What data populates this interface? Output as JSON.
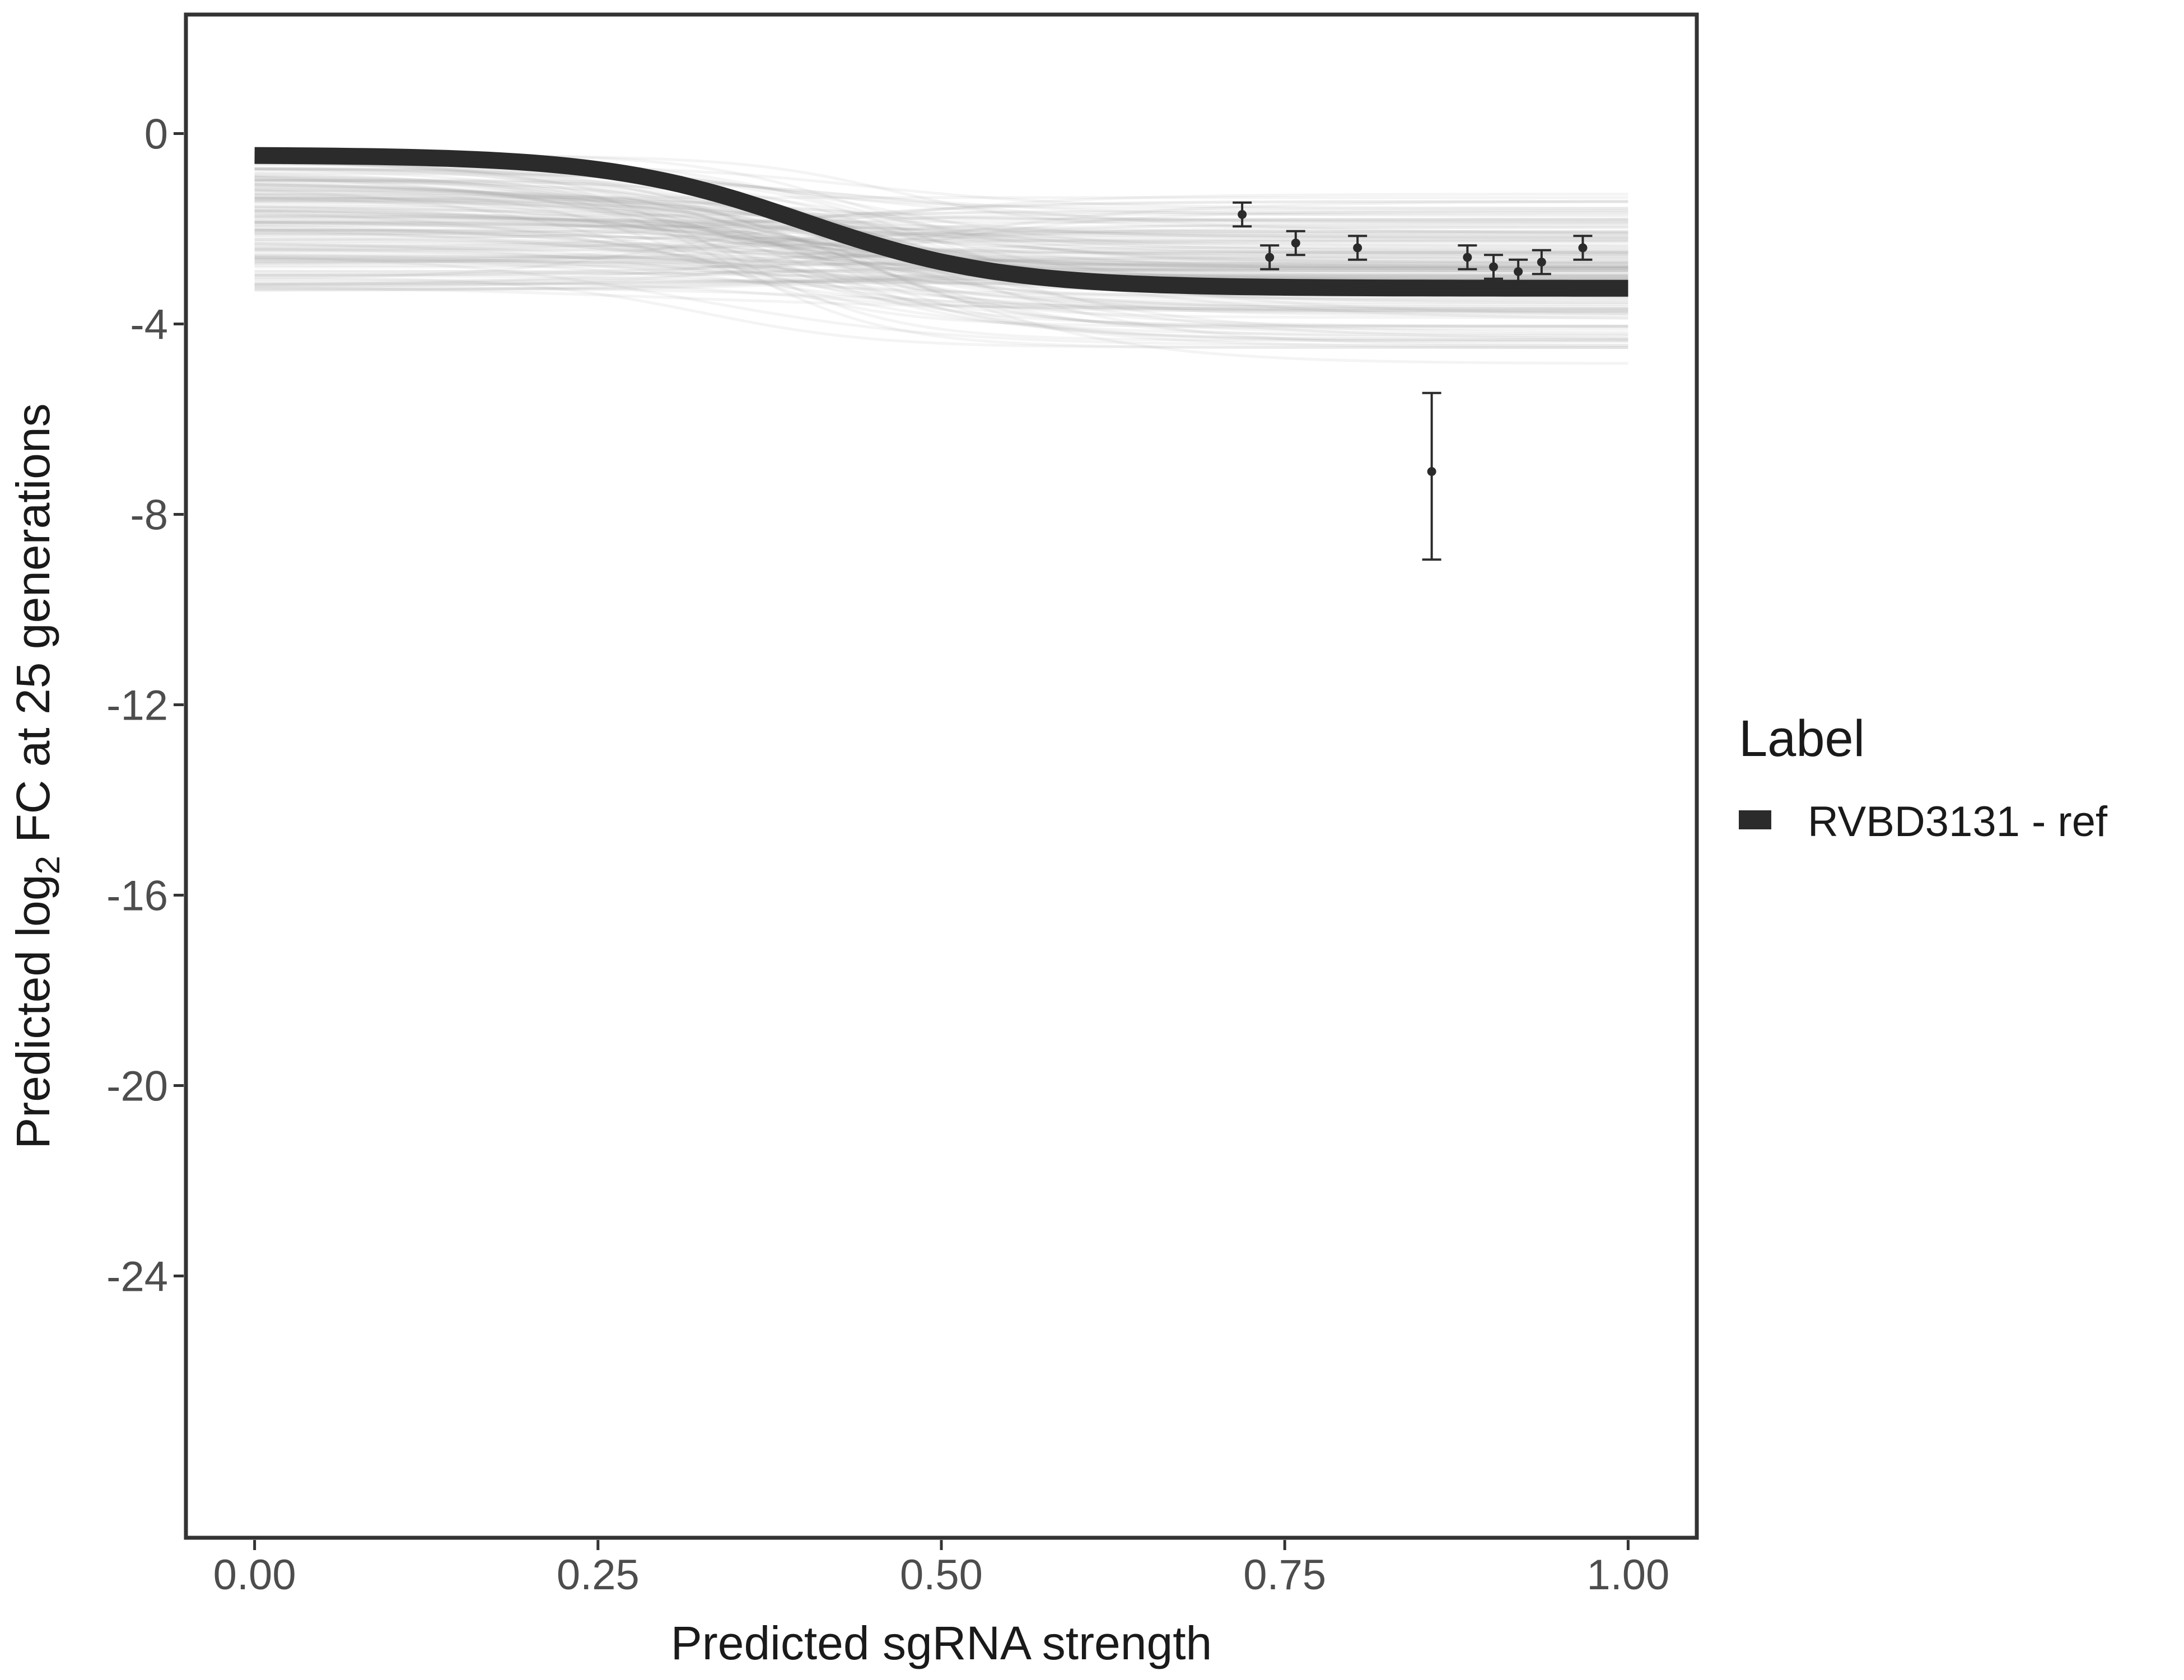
{
  "chart_data": {
    "type": "line",
    "title": "",
    "xlabel": "Predicted sgRNA strength",
    "ylabel": {
      "prefix": "Predicted  log",
      "subscript": "2",
      "suffix": " FC at 25 generations"
    },
    "xlim": [
      -0.05,
      1.05
    ],
    "ylim": [
      -29.5,
      2.5
    ],
    "x_ticks": [
      0.0,
      0.25,
      0.5,
      0.75,
      1.0
    ],
    "x_tick_labels": [
      "0.00",
      "0.25",
      "0.50",
      "0.75",
      "1.00"
    ],
    "y_ticks": [
      0,
      -4,
      -8,
      -12,
      -16,
      -20,
      -24
    ],
    "y_tick_labels": [
      "0",
      "-4",
      "-8",
      "-12",
      "-16",
      "-20",
      "-24"
    ],
    "grid": false,
    "legend": {
      "title": "Label",
      "position": "right",
      "entries": [
        {
          "label": "RVBD3131 - ref",
          "color": "#2b2b2b"
        }
      ]
    },
    "colors": {
      "main_line": "#2b2b2b",
      "posterior_lines": "#a6a6a6",
      "points": "#2b2b2b",
      "frame": "#333333"
    },
    "main_curve": {
      "name": "RVBD3131 - ref",
      "model": "logistic",
      "upper": -0.45,
      "lower": -3.25,
      "midpoint": 0.4,
      "slope": 14
    },
    "posterior_curves": {
      "count": 160,
      "upper_range": [
        -3.3,
        -0.4
      ],
      "lower_range": [
        -5.0,
        -1.0
      ],
      "midpoint_range": [
        0.3,
        0.5
      ],
      "slope_range": [
        8,
        18
      ]
    },
    "points": [
      {
        "x": 0.719,
        "y": -1.7,
        "ymin": -1.95,
        "ymax": -1.45
      },
      {
        "x": 0.739,
        "y": -2.6,
        "ymin": -2.85,
        "ymax": -2.35
      },
      {
        "x": 0.758,
        "y": -2.3,
        "ymin": -2.55,
        "ymax": -2.05
      },
      {
        "x": 0.803,
        "y": -2.4,
        "ymin": -2.65,
        "ymax": -2.15
      },
      {
        "x": 0.857,
        "y": -7.1,
        "ymin": -8.95,
        "ymax": -5.45
      },
      {
        "x": 0.883,
        "y": -2.6,
        "ymin": -2.85,
        "ymax": -2.35
      },
      {
        "x": 0.902,
        "y": -2.8,
        "ymin": -3.05,
        "ymax": -2.55
      },
      {
        "x": 0.92,
        "y": -2.9,
        "ymin": -3.15,
        "ymax": -2.65
      },
      {
        "x": 0.937,
        "y": -2.7,
        "ymin": -2.95,
        "ymax": -2.45
      },
      {
        "x": 0.967,
        "y": -2.4,
        "ymin": -2.65,
        "ymax": -2.15
      }
    ]
  }
}
